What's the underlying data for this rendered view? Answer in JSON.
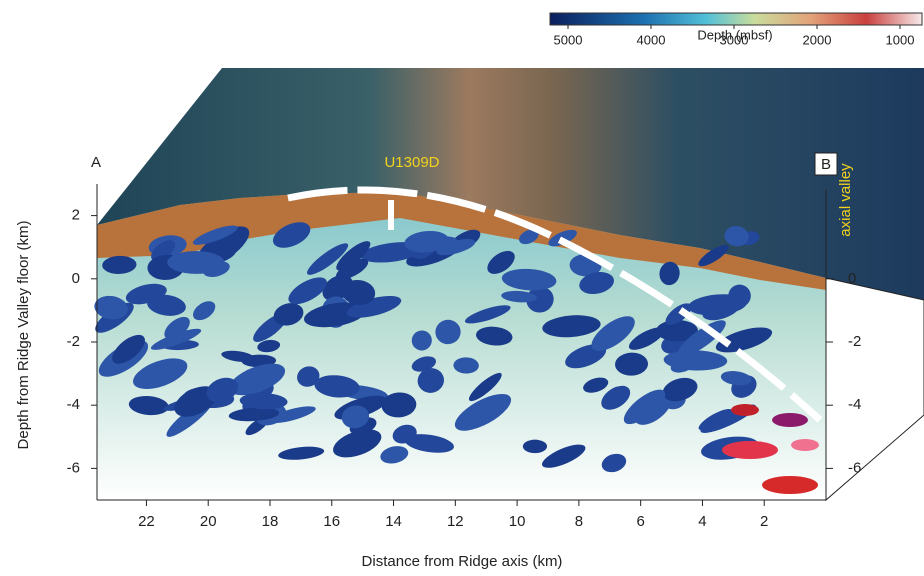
{
  "colorbar": {
    "ticks": [
      5000,
      4000,
      3000,
      2000,
      1000
    ],
    "label": "Depth (mbsf)"
  },
  "section": {
    "left_label": "A",
    "right_label": "B",
    "site_label": "U1309D",
    "valley_label": "axial valley"
  },
  "x_axis": {
    "label": "Distance from Ridge axis (km)",
    "lim": [
      23.6,
      0
    ],
    "ticks": [
      22,
      20,
      18,
      16,
      14,
      12,
      10,
      8,
      6,
      4,
      2
    ]
  },
  "y_axis": {
    "label": "Depth from Ridge Valley floor (km)",
    "lim": [
      -7,
      3
    ],
    "ticks": [
      2,
      0,
      -2,
      -4,
      -6
    ]
  },
  "right_axis": {
    "ticks": [
      0,
      -2,
      -4,
      -6
    ]
  }
}
